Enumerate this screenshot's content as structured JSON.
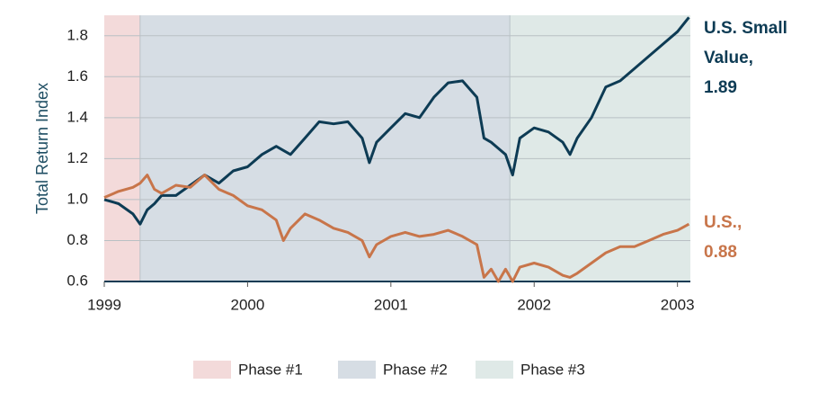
{
  "chart_data": {
    "type": "line",
    "y_label": "Total Return Index",
    "xlim": [
      1999,
      2003.09
    ],
    "xticks": [
      1999,
      2000,
      2001,
      2002,
      2003
    ],
    "ylim": [
      0.6,
      1.9
    ],
    "yticks": [
      0.6,
      0.8,
      {
        "value": 1.0,
        "label": "1.0"
      },
      1.2,
      1.4,
      1.6,
      1.8
    ],
    "grid": true,
    "phases": [
      {
        "name": "Phase #1",
        "start": 1999,
        "end": 1999.25,
        "color": "#f3dada"
      },
      {
        "name": "Phase #2",
        "start": 1999.25,
        "end": 2001.83,
        "color": "#d6dde4"
      },
      {
        "name": "Phase #3",
        "start": 2001.83,
        "end": 2003.09,
        "color": "#dfe9e7"
      }
    ],
    "x": [
      1999.0,
      1999.1,
      1999.2,
      1999.25,
      1999.3,
      1999.35,
      1999.4,
      1999.5,
      1999.6,
      1999.7,
      1999.8,
      1999.9,
      2000.0,
      2000.1,
      2000.2,
      2000.25,
      2000.3,
      2000.4,
      2000.5,
      2000.6,
      2000.7,
      2000.8,
      2000.85,
      2000.9,
      2001.0,
      2001.1,
      2001.2,
      2001.3,
      2001.4,
      2001.5,
      2001.6,
      2001.65,
      2001.7,
      2001.75,
      2001.8,
      2001.85,
      2001.9,
      2002.0,
      2002.1,
      2002.2,
      2002.25,
      2002.3,
      2002.4,
      2002.5,
      2002.6,
      2002.7,
      2002.8,
      2002.9,
      2003.0,
      2003.08
    ],
    "series": [
      {
        "label": [
          "U.S. Small",
          "Value,",
          "1.89"
        ],
        "color": "#0d3b54",
        "values": [
          1.0,
          0.98,
          0.93,
          0.88,
          0.95,
          0.98,
          1.02,
          1.02,
          1.07,
          1.12,
          1.08,
          1.14,
          1.16,
          1.22,
          1.26,
          1.24,
          1.22,
          1.3,
          1.38,
          1.37,
          1.38,
          1.3,
          1.18,
          1.28,
          1.35,
          1.42,
          1.4,
          1.5,
          1.57,
          1.58,
          1.5,
          1.3,
          1.28,
          1.25,
          1.22,
          1.12,
          1.3,
          1.35,
          1.33,
          1.28,
          1.22,
          1.3,
          1.4,
          1.55,
          1.58,
          1.64,
          1.7,
          1.76,
          1.82,
          1.89
        ]
      },
      {
        "label": [
          "U.S.,",
          "0.88"
        ],
        "color": "#c8754a",
        "values": [
          1.01,
          1.04,
          1.06,
          1.08,
          1.12,
          1.05,
          1.03,
          1.07,
          1.06,
          1.12,
          1.05,
          1.02,
          0.97,
          0.95,
          0.9,
          0.8,
          0.86,
          0.93,
          0.9,
          0.86,
          0.84,
          0.8,
          0.72,
          0.78,
          0.82,
          0.84,
          0.82,
          0.83,
          0.85,
          0.82,
          0.78,
          0.62,
          0.66,
          0.6,
          0.66,
          0.6,
          0.67,
          0.69,
          0.67,
          0.63,
          0.62,
          0.64,
          0.69,
          0.74,
          0.77,
          0.77,
          0.8,
          0.83,
          0.85,
          0.88
        ]
      }
    ]
  }
}
